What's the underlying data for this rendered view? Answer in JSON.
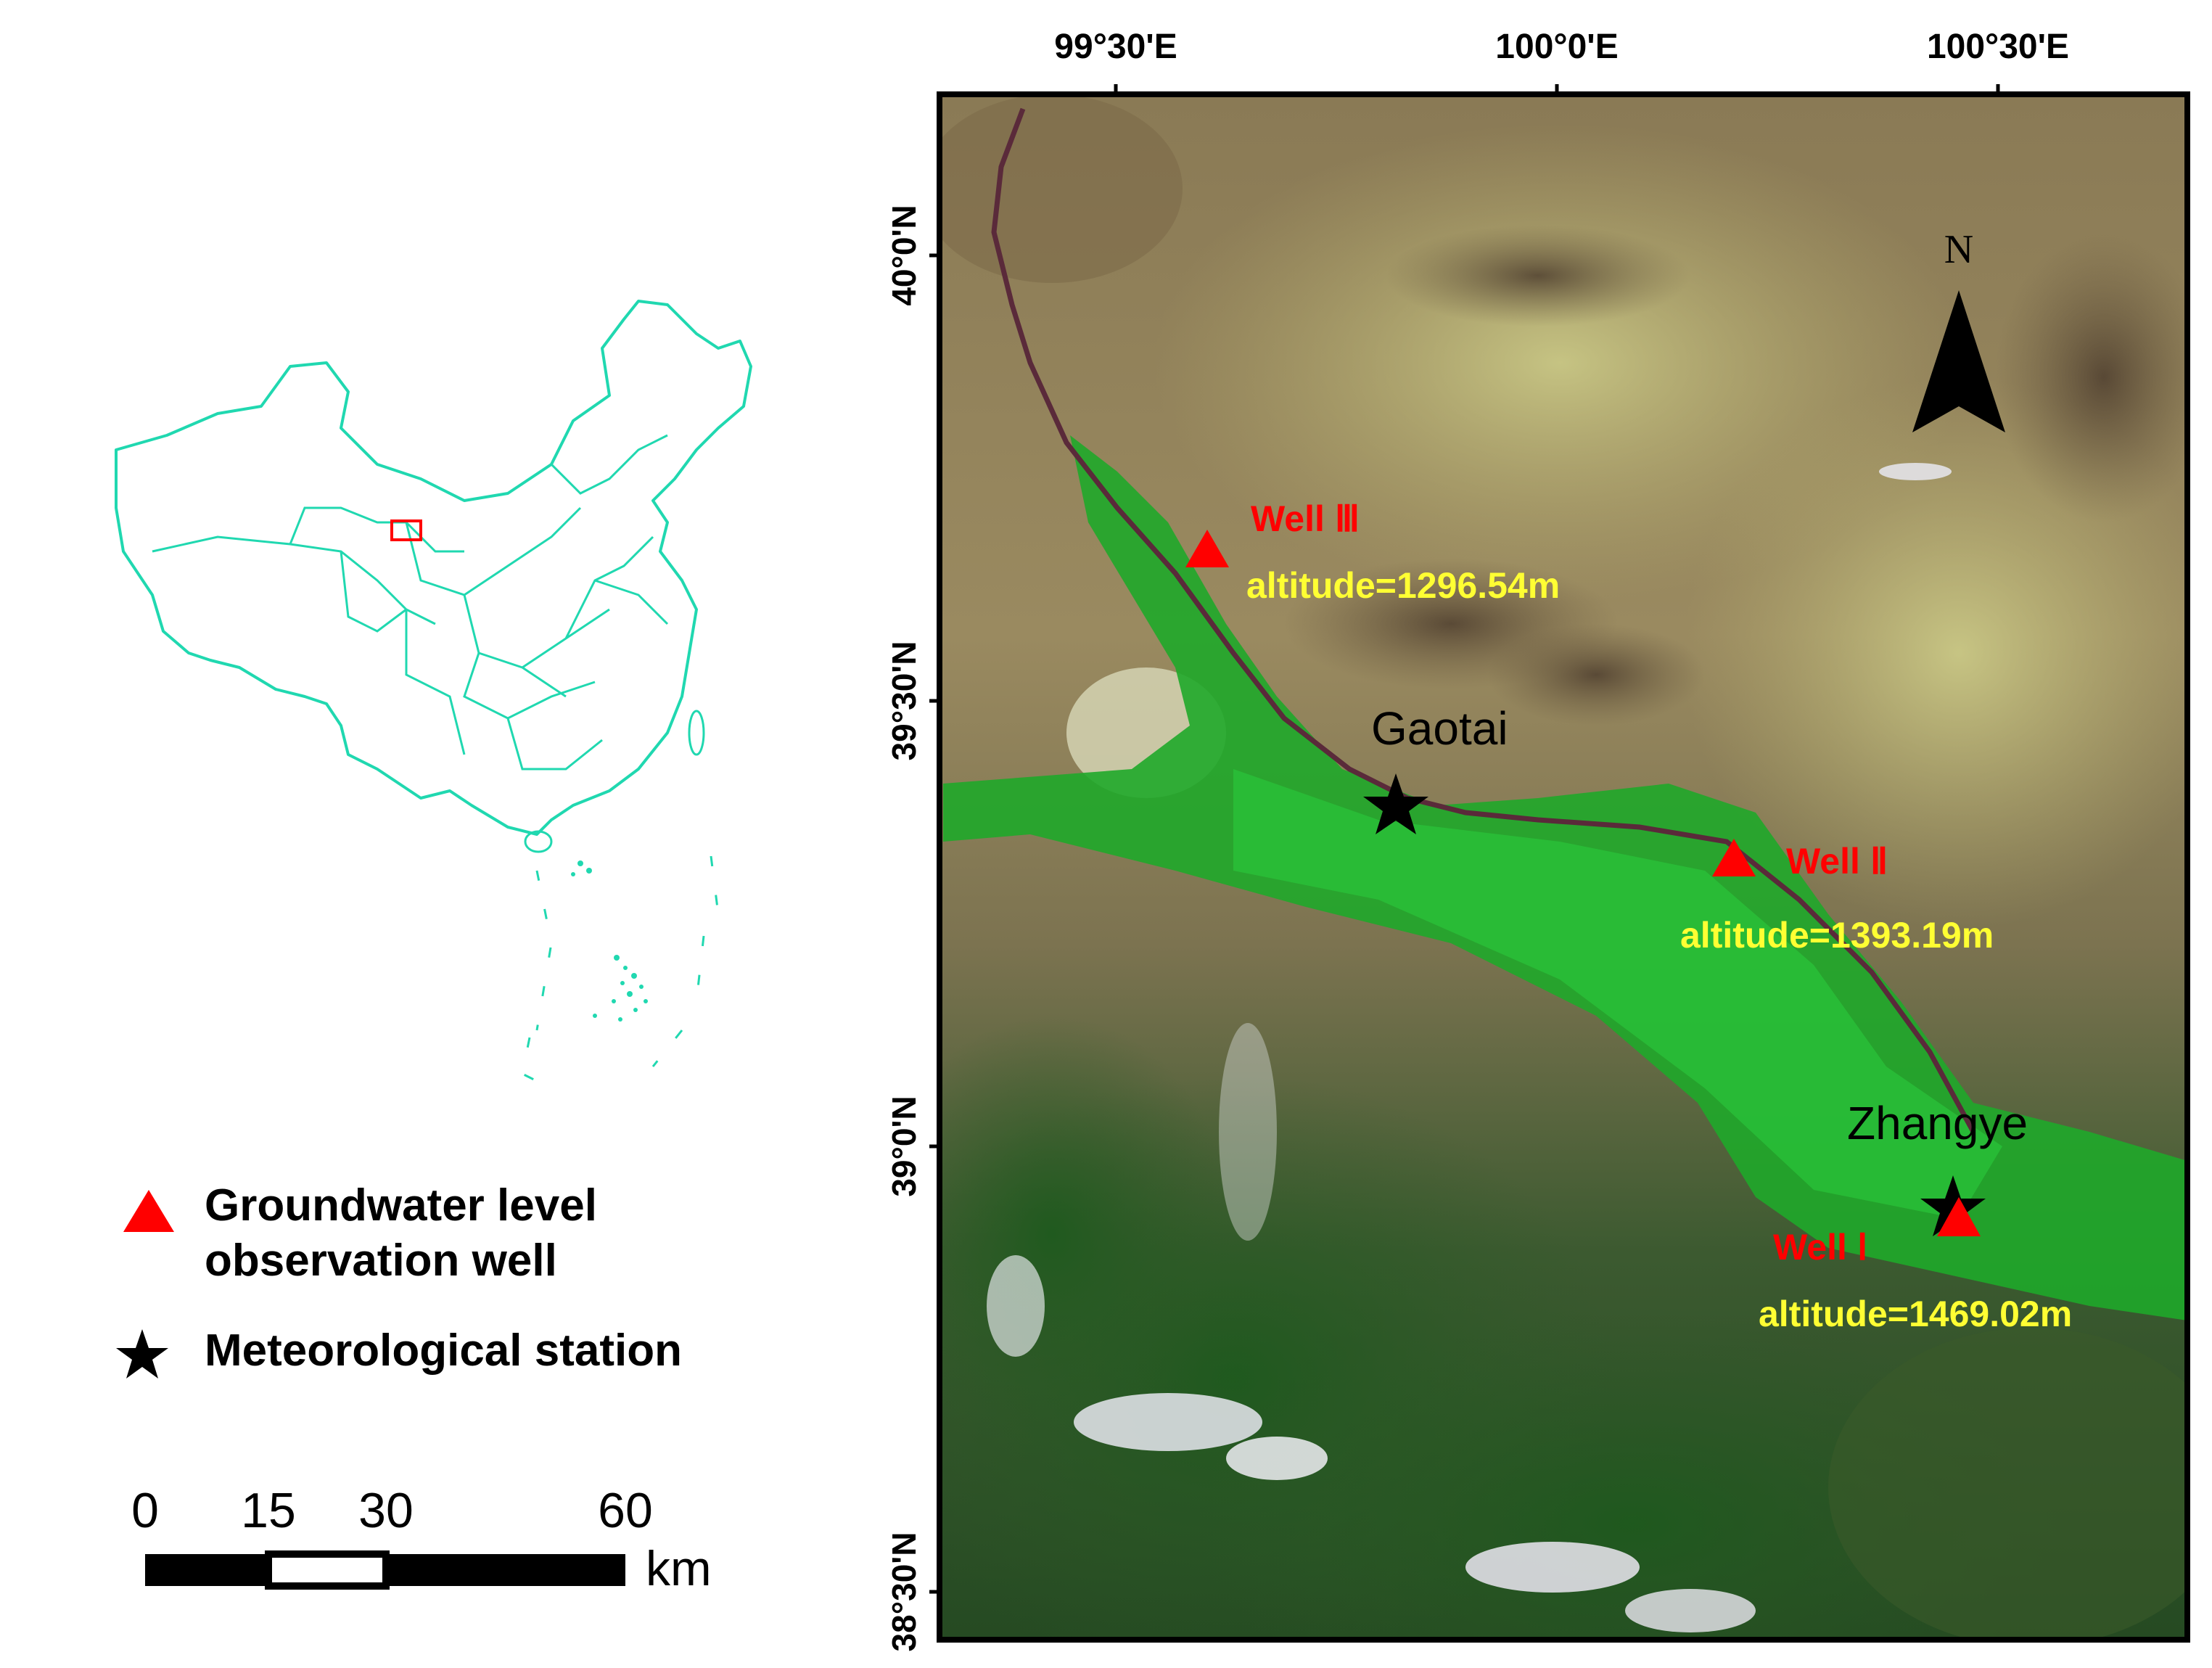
{
  "colors": {
    "well_marker": "#ff0000",
    "station_marker": "#000000",
    "well_label": "#ff0000",
    "altitude_label": "#ffff33",
    "inset_outline": "#20d8b0",
    "inset_box": "#ff0000"
  },
  "map": {
    "lon_ticks": [
      "99°30'E",
      "100°0'E",
      "100°30'E"
    ],
    "lat_ticks": [
      "40°0'N",
      "39°30'N",
      "39°0'N",
      "38°30'N"
    ],
    "north_label": "N",
    "icons": [
      "north-arrow-icon",
      "triangle-icon",
      "star-icon"
    ],
    "wells": [
      {
        "name": "Well Ⅲ",
        "altitude": "altitude=1296.54m"
      },
      {
        "name": "Well Ⅱ",
        "altitude": "altitude=1393.19m"
      },
      {
        "name": "Well Ⅰ",
        "altitude": "altitude=1469.02m"
      }
    ],
    "stations": [
      {
        "name": "Gaotai"
      },
      {
        "name": "Zhangye"
      }
    ]
  },
  "legend": {
    "well_line1": "Groundwater level",
    "well_line2": "observation well",
    "station": "Meteorological station"
  },
  "scale_bar": {
    "ticks": [
      "0",
      "15",
      "30",
      "60"
    ],
    "unit": "km"
  }
}
